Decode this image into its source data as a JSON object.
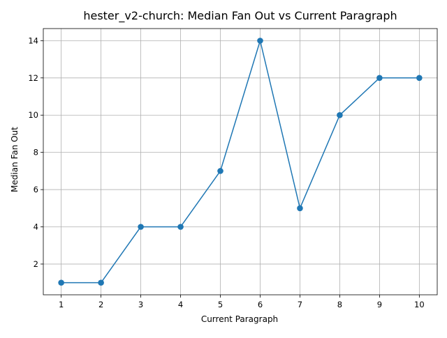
{
  "chart_data": {
    "type": "line",
    "title": "hester_v2-church: Median Fan Out vs Current Paragraph",
    "xlabel": "Current Paragraph",
    "ylabel": "Median Fan Out",
    "x": [
      1,
      2,
      3,
      4,
      5,
      6,
      7,
      8,
      9,
      10
    ],
    "series": [
      {
        "values": [
          1,
          1,
          4,
          4,
          7,
          14,
          5,
          10,
          12,
          12
        ],
        "color": "#1f77b4",
        "marker": "circle"
      }
    ],
    "xticks": [
      1,
      2,
      3,
      4,
      5,
      6,
      7,
      8,
      9,
      10
    ],
    "yticks": [
      2,
      4,
      6,
      8,
      10,
      12,
      14
    ],
    "xlim": [
      0.55,
      10.45
    ],
    "ylim": [
      0.35,
      14.65
    ],
    "grid": true,
    "legend": "none"
  }
}
